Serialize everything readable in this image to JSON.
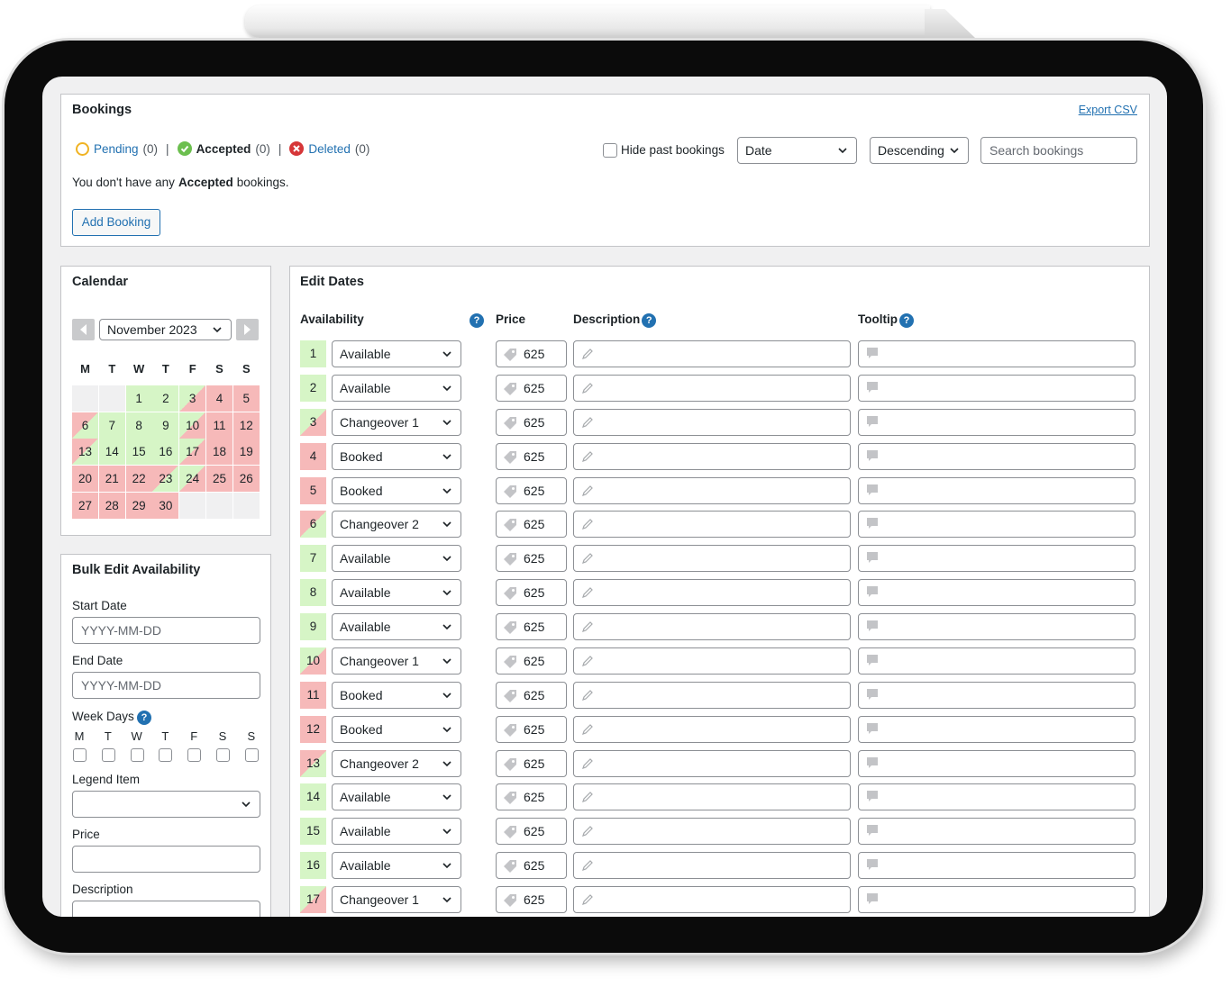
{
  "help_icon": "?",
  "colors": {
    "available": "#d6f5c6",
    "booked": "#f6b9b9",
    "blank": "#f0f0f1"
  },
  "bookings": {
    "title": "Bookings",
    "export": "Export CSV",
    "statuses": [
      {
        "label": "Pending",
        "count": "(0)",
        "active": false
      },
      {
        "label": "Accepted",
        "count": "(0)",
        "active": true
      },
      {
        "label": "Deleted",
        "count": "(0)",
        "active": false
      }
    ],
    "separator": "|",
    "hide_past": "Hide past bookings",
    "sort_field": "Date",
    "sort_order": "Descending",
    "search_placeholder": "Search bookings",
    "message": {
      "before": "You don't have any",
      "emphasis": "Accepted",
      "after": "bookings."
    },
    "add_button": "Add Booking"
  },
  "calendar": {
    "title": "Calendar",
    "month": "November 2023",
    "weekdays": [
      "M",
      "T",
      "W",
      "T",
      "F",
      "S",
      "S"
    ],
    "cells": [
      null,
      null,
      {
        "day": 1,
        "status": "available"
      },
      {
        "day": 2,
        "status": "available"
      },
      {
        "day": 3,
        "status": "changeover1"
      },
      {
        "day": 4,
        "status": "booked"
      },
      {
        "day": 5,
        "status": "booked"
      },
      {
        "day": 6,
        "status": "changeover2"
      },
      {
        "day": 7,
        "status": "available"
      },
      {
        "day": 8,
        "status": "available"
      },
      {
        "day": 9,
        "status": "available"
      },
      {
        "day": 10,
        "status": "changeover1"
      },
      {
        "day": 11,
        "status": "booked"
      },
      {
        "day": 12,
        "status": "booked"
      },
      {
        "day": 13,
        "status": "changeover2"
      },
      {
        "day": 14,
        "status": "available"
      },
      {
        "day": 15,
        "status": "available"
      },
      {
        "day": 16,
        "status": "available"
      },
      {
        "day": 17,
        "status": "changeover1"
      },
      {
        "day": 18,
        "status": "booked"
      },
      {
        "day": 19,
        "status": "booked"
      },
      {
        "day": 20,
        "status": "booked"
      },
      {
        "day": 21,
        "status": "booked"
      },
      {
        "day": 22,
        "status": "booked"
      },
      {
        "day": 23,
        "status": "changeover2"
      },
      {
        "day": 24,
        "status": "changeover1"
      },
      {
        "day": 25,
        "status": "booked"
      },
      {
        "day": 26,
        "status": "booked"
      },
      {
        "day": 27,
        "status": "booked"
      },
      {
        "day": 28,
        "status": "booked"
      },
      {
        "day": 29,
        "status": "booked"
      },
      {
        "day": 30,
        "status": "booked"
      },
      null,
      null,
      null
    ]
  },
  "bulk_edit": {
    "title": "Bulk Edit Availability",
    "start_date": {
      "label": "Start Date",
      "placeholder": "YYYY-MM-DD"
    },
    "end_date": {
      "label": "End Date",
      "placeholder": "YYYY-MM-DD"
    },
    "week_days": {
      "label": "Week Days",
      "days": [
        "M",
        "T",
        "W",
        "T",
        "F",
        "S",
        "S"
      ]
    },
    "legend_item": "Legend Item",
    "price": "Price",
    "description": "Description"
  },
  "edit_dates": {
    "title": "Edit Dates",
    "columns": [
      "Availability",
      "Price",
      "Description",
      "Tooltip"
    ],
    "rows": [
      {
        "day": 1,
        "availability": "Available",
        "status": "available",
        "price": 625
      },
      {
        "day": 2,
        "availability": "Available",
        "status": "available",
        "price": 625
      },
      {
        "day": 3,
        "availability": "Changeover 1",
        "status": "changeover1",
        "price": 625
      },
      {
        "day": 4,
        "availability": "Booked",
        "status": "booked",
        "price": 625
      },
      {
        "day": 5,
        "availability": "Booked",
        "status": "booked",
        "price": 625
      },
      {
        "day": 6,
        "availability": "Changeover 2",
        "status": "changeover2",
        "price": 625
      },
      {
        "day": 7,
        "availability": "Available",
        "status": "available",
        "price": 625
      },
      {
        "day": 8,
        "availability": "Available",
        "status": "available",
        "price": 625
      },
      {
        "day": 9,
        "availability": "Available",
        "status": "available",
        "price": 625
      },
      {
        "day": 10,
        "availability": "Changeover 1",
        "status": "changeover1",
        "price": 625
      },
      {
        "day": 11,
        "availability": "Booked",
        "status": "booked",
        "price": 625
      },
      {
        "day": 12,
        "availability": "Booked",
        "status": "booked",
        "price": 625
      },
      {
        "day": 13,
        "availability": "Changeover 2",
        "status": "changeover2",
        "price": 625
      },
      {
        "day": 14,
        "availability": "Available",
        "status": "available",
        "price": 625
      },
      {
        "day": 15,
        "availability": "Available",
        "status": "available",
        "price": 625
      },
      {
        "day": 16,
        "availability": "Available",
        "status": "available",
        "price": 625
      },
      {
        "day": 17,
        "availability": "Changeover 1",
        "status": "changeover1",
        "price": 625
      }
    ]
  }
}
